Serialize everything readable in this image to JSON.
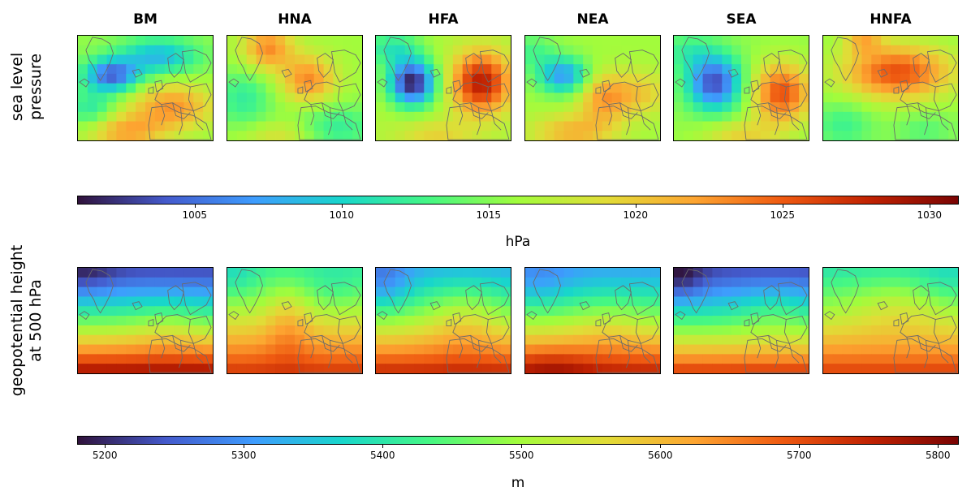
{
  "chart_data": {
    "type": "heatmap",
    "columns": [
      "BM",
      "HNA",
      "HFA",
      "NEA",
      "SEA",
      "HNFA"
    ],
    "rows": [
      {
        "id": "slp",
        "label_lines": [
          "sea level",
          "pressure"
        ],
        "colorbar": {
          "min": 1001,
          "max": 1031,
          "ticks": [
            1005,
            1010,
            1015,
            1020,
            1025,
            1030
          ],
          "unit": "hPa"
        },
        "fields": [
          {
            "regime": "BM",
            "background": 1015.5,
            "centers": [
              {
                "x": 0.25,
                "y": 0.38,
                "amp": -11,
                "sx": 0.14,
                "sy": 0.11
              },
              {
                "x": 0.6,
                "y": 0.2,
                "amp": -7,
                "sx": 0.2,
                "sy": 0.12
              },
              {
                "x": 0.7,
                "y": 0.68,
                "amp": 7,
                "sx": 0.22,
                "sy": 0.16
              },
              {
                "x": 0.35,
                "y": 0.92,
                "amp": 6,
                "sx": 0.2,
                "sy": 0.12
              },
              {
                "x": 0.1,
                "y": 0.7,
                "amp": -4,
                "sx": 0.12,
                "sy": 0.12
              }
            ]
          },
          {
            "regime": "HNA",
            "background": 1016,
            "centers": [
              {
                "x": 0.3,
                "y": 0.12,
                "amp": 7,
                "sx": 0.13,
                "sy": 0.15
              },
              {
                "x": 0.6,
                "y": 0.42,
                "amp": 7,
                "sx": 0.14,
                "sy": 0.16
              },
              {
                "x": 0.12,
                "y": 0.6,
                "amp": -4,
                "sx": 0.15,
                "sy": 0.2
              },
              {
                "x": 0.8,
                "y": 0.88,
                "amp": -4,
                "sx": 0.22,
                "sy": 0.16
              },
              {
                "x": 0.4,
                "y": 0.95,
                "amp": 3,
                "sx": 0.2,
                "sy": 0.1
              }
            ]
          },
          {
            "regime": "HFA",
            "background": 1016.5,
            "centers": [
              {
                "x": 0.27,
                "y": 0.45,
                "amp": -15,
                "sx": 0.12,
                "sy": 0.15
              },
              {
                "x": 0.78,
                "y": 0.45,
                "amp": 12,
                "sx": 0.15,
                "sy": 0.2
              },
              {
                "x": 0.12,
                "y": 0.12,
                "amp": -5,
                "sx": 0.15,
                "sy": 0.12
              },
              {
                "x": 0.45,
                "y": 0.95,
                "amp": 3,
                "sx": 0.2,
                "sy": 0.1
              }
            ]
          },
          {
            "regime": "NEA",
            "background": 1016,
            "centers": [
              {
                "x": 0.28,
                "y": 0.38,
                "amp": -9,
                "sx": 0.13,
                "sy": 0.12
              },
              {
                "x": 0.58,
                "y": 0.6,
                "amp": 6,
                "sx": 0.13,
                "sy": 0.17
              },
              {
                "x": 0.85,
                "y": 0.55,
                "amp": 4,
                "sx": 0.15,
                "sy": 0.15
              },
              {
                "x": 0.35,
                "y": 0.92,
                "amp": 5,
                "sx": 0.22,
                "sy": 0.12
              },
              {
                "x": 0.05,
                "y": 0.15,
                "amp": -3,
                "sx": 0.12,
                "sy": 0.12
              }
            ]
          },
          {
            "regime": "SEA",
            "background": 1015.5,
            "centers": [
              {
                "x": 0.3,
                "y": 0.45,
                "amp": -12,
                "sx": 0.14,
                "sy": 0.18
              },
              {
                "x": 0.8,
                "y": 0.55,
                "amp": 10,
                "sx": 0.15,
                "sy": 0.2
              },
              {
                "x": 0.1,
                "y": 0.15,
                "amp": -3,
                "sx": 0.15,
                "sy": 0.12
              },
              {
                "x": 0.5,
                "y": 0.95,
                "amp": 4,
                "sx": 0.2,
                "sy": 0.1
              }
            ]
          },
          {
            "regime": "HNFA",
            "background": 1015.5,
            "centers": [
              {
                "x": 0.55,
                "y": 0.35,
                "amp": 10,
                "sx": 0.28,
                "sy": 0.18
              },
              {
                "x": 0.3,
                "y": 0.05,
                "amp": 5,
                "sx": 0.1,
                "sy": 0.08
              },
              {
                "x": 0.15,
                "y": 0.85,
                "amp": -3,
                "sx": 0.15,
                "sy": 0.15
              },
              {
                "x": 0.75,
                "y": 0.9,
                "amp": -2,
                "sx": 0.15,
                "sy": 0.12
              }
            ]
          }
        ]
      },
      {
        "id": "z500",
        "label_lines": [
          "geopotential height",
          "at 500 hPa"
        ],
        "colorbar": {
          "min": 5180,
          "max": 5815,
          "ticks": [
            5200,
            5300,
            5400,
            5500,
            5600,
            5700,
            5800
          ],
          "unit": "m"
        },
        "fields": [
          {
            "regime": "BM",
            "top": 5230,
            "bottom": 5790,
            "centers": [
              {
                "x": 0.05,
                "y": 0.05,
                "amp": -40,
                "sx": 0.15,
                "sy": 0.15
              },
              {
                "x": 0.65,
                "y": 0.55,
                "amp": 30,
                "sx": 0.2,
                "sy": 0.2
              }
            ]
          },
          {
            "regime": "HNA",
            "top": 5420,
            "bottom": 5730,
            "centers": [
              {
                "x": 0.45,
                "y": 0.5,
                "amp": 60,
                "sx": 0.12,
                "sy": 0.25
              },
              {
                "x": 0.05,
                "y": 0.1,
                "amp": -40,
                "sx": 0.12,
                "sy": 0.15
              },
              {
                "x": 0.8,
                "y": 0.2,
                "amp": -30,
                "sx": 0.15,
                "sy": 0.15
              }
            ]
          },
          {
            "regime": "HFA",
            "top": 5330,
            "bottom": 5750,
            "centers": [
              {
                "x": 0.05,
                "y": 0.15,
                "amp": -70,
                "sx": 0.14,
                "sy": 0.2
              },
              {
                "x": 0.65,
                "y": 0.45,
                "amp": 60,
                "sx": 0.2,
                "sy": 0.25
              }
            ]
          },
          {
            "regime": "NEA",
            "top": 5320,
            "bottom": 5760,
            "centers": [
              {
                "x": 0.1,
                "y": 0.15,
                "amp": -40,
                "sx": 0.18,
                "sy": 0.18
              },
              {
                "x": 0.6,
                "y": 0.55,
                "amp": 30,
                "sx": 0.2,
                "sy": 0.2
              },
              {
                "x": 0.2,
                "y": 0.92,
                "amp": 40,
                "sx": 0.2,
                "sy": 0.12
              }
            ]
          },
          {
            "regime": "SEA",
            "top": 5230,
            "bottom": 5730,
            "centers": [
              {
                "x": 0.05,
                "y": 0.1,
                "amp": -60,
                "sx": 0.12,
                "sy": 0.15
              },
              {
                "x": 0.75,
                "y": 0.4,
                "amp": 40,
                "sx": 0.2,
                "sy": 0.2
              }
            ]
          },
          {
            "regime": "HNFA",
            "top": 5400,
            "bottom": 5720,
            "centers": [
              {
                "x": 0.55,
                "y": 0.35,
                "amp": 50,
                "sx": 0.25,
                "sy": 0.2
              },
              {
                "x": 0.9,
                "y": 0.15,
                "amp": -30,
                "sx": 0.15,
                "sy": 0.15
              }
            ]
          }
        ]
      }
    ]
  }
}
